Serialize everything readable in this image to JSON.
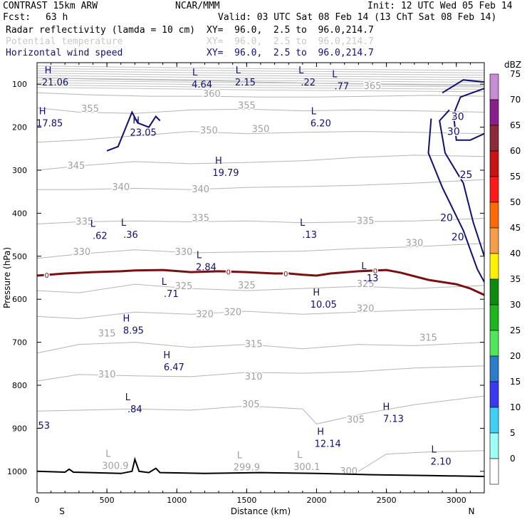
{
  "header": {
    "model": "CONTRAST 15km ARW",
    "org": "NCAR/MMM",
    "init": "Init: 12 UTC Wed 05 Feb 14",
    "fcst_label": "Fcst:",
    "fcst_value": "63 h",
    "valid": "Valid: 03 UTC Sat 08 Feb 14 (13 ChT Sat 08 Feb 14)",
    "fields": [
      {
        "name": "Radar reflectivity (lamda = 10 cm)",
        "xy": "XY=  96.0,  2.5 to  96.0,214.7",
        "color": "#000000"
      },
      {
        "name": "Potential temperature",
        "xy": "XY=  96.0,  2.5 to  96.0,214.7",
        "color": "#c8c8c8"
      },
      {
        "name": "Horizontal wind speed",
        "xy": "XY=  96.0,  2.5 to  96.0,214.7",
        "color": "#101070"
      }
    ]
  },
  "chart_data": {
    "type": "cross-section contour",
    "xlabel": "Distance (km)",
    "ylabel": "Pressure (hPa)",
    "x_ticks": [
      0,
      500,
      1000,
      1500,
      2000,
      2500,
      3000
    ],
    "xlim": [
      0,
      3200
    ],
    "y_ticks": [
      100,
      200,
      300,
      400,
      500,
      600,
      700,
      800,
      900,
      1000
    ],
    "ylim": [
      50,
      1050
    ],
    "x_end_labels": {
      "left": "S",
      "right": "N"
    },
    "colorbar": {
      "unit": "dBZ",
      "levels": [
        0,
        5,
        10,
        15,
        20,
        25,
        30,
        35,
        40,
        45,
        50,
        55,
        60,
        65,
        70,
        75
      ],
      "colors": [
        "#ffffff",
        "#9ffff5",
        "#3fd0f5",
        "#3a3af0",
        "#2d7cc8",
        "#4fe65a",
        "#1fb51f",
        "#0e8a0e",
        "#fff200",
        "#f59e4a",
        "#ff6a00",
        "#ff1a1a",
        "#c81414",
        "#8c2a3a",
        "#8a1e8a",
        "#c88cd2"
      ]
    },
    "theta_contours": [
      {
        "label": "365",
        "points": [
          [
            0,
            85
          ],
          [
            400,
            88
          ],
          [
            800,
            90
          ],
          [
            1200,
            92
          ],
          [
            1600,
            95
          ],
          [
            2000,
            98
          ],
          [
            2400,
            100
          ],
          [
            2800,
            102
          ],
          [
            3200,
            104
          ]
        ]
      },
      {
        "label": "360",
        "points": [
          [
            0,
            120
          ],
          [
            400,
            125
          ],
          [
            800,
            128
          ],
          [
            1200,
            128
          ],
          [
            1600,
            130
          ],
          [
            2000,
            130
          ],
          [
            2400,
            128
          ],
          [
            2800,
            126
          ],
          [
            3200,
            128
          ]
        ]
      },
      {
        "label": "355",
        "points": [
          [
            0,
            155
          ],
          [
            300,
            165
          ],
          [
            700,
            168
          ],
          [
            1100,
            160
          ],
          [
            1500,
            158
          ],
          [
            1900,
            162
          ],
          [
            2300,
            160
          ],
          [
            2700,
            162
          ],
          [
            3200,
            165
          ]
        ]
      },
      {
        "label": "350",
        "points": [
          [
            0,
            235
          ],
          [
            300,
            230
          ],
          [
            700,
            220
          ],
          [
            1100,
            210
          ],
          [
            1500,
            215
          ],
          [
            1900,
            212
          ],
          [
            2300,
            210
          ],
          [
            2700,
            212
          ],
          [
            3200,
            215
          ]
        ]
      },
      {
        "label": "345",
        "points": [
          [
            0,
            300
          ],
          [
            300,
            290
          ],
          [
            700,
            280
          ],
          [
            1100,
            285
          ],
          [
            1500,
            282
          ],
          [
            1900,
            278
          ],
          [
            2300,
            270
          ],
          [
            2700,
            265
          ],
          [
            3200,
            268
          ]
        ]
      },
      {
        "label": "340",
        "points": [
          [
            0,
            345
          ],
          [
            300,
            345
          ],
          [
            700,
            342
          ],
          [
            1100,
            345
          ],
          [
            1500,
            340
          ],
          [
            1900,
            338
          ],
          [
            2300,
            335
          ],
          [
            2700,
            330
          ],
          [
            3200,
            322
          ]
        ]
      },
      {
        "label": "335",
        "points": [
          [
            0,
            425
          ],
          [
            300,
            420
          ],
          [
            700,
            418
          ],
          [
            1100,
            420
          ],
          [
            1500,
            418
          ],
          [
            1900,
            422
          ],
          [
            2300,
            420
          ],
          [
            2700,
            418
          ],
          [
            3200,
            412
          ]
        ]
      },
      {
        "label": "330",
        "points": [
          [
            0,
            505
          ],
          [
            300,
            495
          ],
          [
            700,
            485
          ],
          [
            1100,
            492
          ],
          [
            1500,
            490
          ],
          [
            1900,
            488
          ],
          [
            2300,
            482
          ],
          [
            2700,
            478
          ],
          [
            3200,
            470
          ]
        ]
      },
      {
        "label": "325",
        "points": [
          [
            0,
            580
          ],
          [
            300,
            585
          ],
          [
            700,
            565
          ],
          [
            1100,
            575
          ],
          [
            1500,
            580
          ],
          [
            1900,
            575
          ],
          [
            2300,
            570
          ],
          [
            2700,
            575
          ],
          [
            3200,
            568
          ]
        ]
      },
      {
        "label": "320",
        "points": [
          [
            0,
            640
          ],
          [
            300,
            645
          ],
          [
            700,
            630
          ],
          [
            1100,
            635
          ],
          [
            1500,
            628
          ],
          [
            1900,
            635
          ],
          [
            2300,
            630
          ],
          [
            2700,
            625
          ],
          [
            3200,
            622
          ]
        ]
      },
      {
        "label": "315",
        "points": [
          [
            0,
            725
          ],
          [
            300,
            705
          ],
          [
            700,
            700
          ],
          [
            1100,
            712
          ],
          [
            1500,
            705
          ],
          [
            1900,
            715
          ],
          [
            2300,
            705
          ],
          [
            2700,
            708
          ],
          [
            3200,
            700
          ]
        ]
      },
      {
        "label": "310",
        "points": [
          [
            0,
            790
          ],
          [
            300,
            775
          ],
          [
            700,
            778
          ],
          [
            1100,
            780
          ],
          [
            1500,
            770
          ],
          [
            1900,
            772
          ],
          [
            2300,
            768
          ],
          [
            2700,
            760
          ],
          [
            3200,
            755
          ]
        ]
      },
      {
        "label": "305",
        "points": [
          [
            0,
            860
          ],
          [
            300,
            858
          ],
          [
            700,
            855
          ],
          [
            1100,
            858
          ],
          [
            1500,
            848
          ],
          [
            1900,
            855
          ],
          [
            2000,
            890
          ],
          [
            2300,
            868
          ],
          [
            2700,
            845
          ],
          [
            3200,
            825
          ]
        ]
      },
      {
        "label": "300",
        "points": [
          [
            2300,
            1000
          ],
          [
            2500,
            960
          ],
          [
            2800,
            955
          ],
          [
            3200,
            952
          ]
        ]
      }
    ],
    "theta_labels": [
      {
        "label": "365",
        "x": 2400,
        "y": 105
      },
      {
        "label": "360",
        "x": 1250,
        "y": 123
      },
      {
        "label": "355",
        "x": 380,
        "y": 158
      },
      {
        "label": "355",
        "x": 1500,
        "y": 150
      },
      {
        "label": "350",
        "x": 1230,
        "y": 208
      },
      {
        "label": "350",
        "x": 1600,
        "y": 205
      },
      {
        "label": "345",
        "x": 280,
        "y": 290
      },
      {
        "label": "340",
        "x": 600,
        "y": 340
      },
      {
        "label": "340",
        "x": 1170,
        "y": 345
      },
      {
        "label": "335",
        "x": 340,
        "y": 420
      },
      {
        "label": "335",
        "x": 1170,
        "y": 412
      },
      {
        "label": "335",
        "x": 2350,
        "y": 418
      },
      {
        "label": "330",
        "x": 320,
        "y": 490
      },
      {
        "label": "330",
        "x": 1050,
        "y": 490
      },
      {
        "label": "330",
        "x": 2700,
        "y": 470
      },
      {
        "label": "325",
        "x": 1050,
        "y": 570
      },
      {
        "label": "325",
        "x": 1500,
        "y": 568
      },
      {
        "label": "325",
        "x": 2350,
        "y": 565
      },
      {
        "label": "320",
        "x": 1400,
        "y": 630
      },
      {
        "label": "320",
        "x": 2350,
        "y": 622
      },
      {
        "label": "320",
        "x": 1200,
        "y": 635
      },
      {
        "label": "315",
        "x": 500,
        "y": 680
      },
      {
        "label": "315",
        "x": 1550,
        "y": 705
      },
      {
        "label": "315",
        "x": 2800,
        "y": 690
      },
      {
        "label": "310",
        "x": 500,
        "y": 775
      },
      {
        "label": "310",
        "x": 1550,
        "y": 780
      },
      {
        "label": "305",
        "x": 1530,
        "y": 845
      },
      {
        "label": "305",
        "x": 2280,
        "y": 880
      },
      {
        "label": "300",
        "x": 2230,
        "y": 1000
      }
    ],
    "wind_contours": [
      {
        "label": "30",
        "points": [
          [
            2900,
            120
          ],
          [
            3050,
            90
          ],
          [
            3200,
            95
          ]
        ]
      },
      {
        "label": "30",
        "points": [
          [
            3200,
            110
          ],
          [
            3030,
            130
          ],
          [
            2980,
            170
          ],
          [
            3000,
            230
          ],
          [
            3100,
            230
          ],
          [
            3200,
            215
          ]
        ]
      },
      {
        "label": "25",
        "points": [
          [
            2950,
            160
          ],
          [
            2880,
            185
          ],
          [
            2920,
            260
          ],
          [
            3050,
            330
          ],
          [
            3120,
            420
          ],
          [
            3200,
            500
          ]
        ]
      },
      {
        "label": "20",
        "points": [
          [
            2820,
            180
          ],
          [
            2800,
            260
          ],
          [
            2900,
            340
          ],
          [
            3050,
            440
          ],
          [
            3150,
            530
          ],
          [
            3200,
            560
          ]
        ]
      },
      {
        "label": "20",
        "points": [
          [
            500,
            255
          ],
          [
            580,
            245
          ],
          [
            680,
            165
          ],
          [
            720,
            190
          ],
          [
            800,
            200
          ],
          [
            850,
            175
          ],
          [
            880,
            185
          ]
        ]
      }
    ],
    "wind_labels": [
      {
        "label": "30",
        "x": 3010,
        "y": 175
      },
      {
        "label": "30",
        "x": 2980,
        "y": 210
      },
      {
        "label": "25",
        "x": 3070,
        "y": 310
      },
      {
        "label": "20",
        "x": 2930,
        "y": 410
      },
      {
        "label": "20",
        "x": 3010,
        "y": 455
      }
    ],
    "extrema": [
      {
        "kind": "H",
        "value": "21.06",
        "x": 130,
        "y": 88
      },
      {
        "kind": "L",
        "value": "4.64",
        "x": 1180,
        "y": 93
      },
      {
        "kind": "L",
        "value": "2.15",
        "x": 1490,
        "y": 88
      },
      {
        "kind": "L",
        "value": ".22",
        "x": 1940,
        "y": 88
      },
      {
        "kind": "L",
        "value": ".77",
        "x": 2180,
        "y": 97
      },
      {
        "kind": "H",
        "value": "17.85",
        "x": 90,
        "y": 183
      },
      {
        "kind": "H",
        "value": "23.05",
        "x": 760,
        "y": 205
      },
      {
        "kind": "L",
        "value": "6.20",
        "x": 2030,
        "y": 183
      },
      {
        "kind": "H",
        "value": "19.79",
        "x": 1350,
        "y": 298
      },
      {
        "kind": "L",
        "value": ".62",
        "x": 450,
        "y": 445
      },
      {
        "kind": "L",
        "value": ".36",
        "x": 670,
        "y": 442
      },
      {
        "kind": "L",
        "value": ".13",
        "x": 1950,
        "y": 442
      },
      {
        "kind": "L",
        "value": "2.84",
        "x": 1210,
        "y": 518
      },
      {
        "kind": "L",
        "value": ".13",
        "x": 2390,
        "y": 543
      },
      {
        "kind": "L",
        "value": ".71",
        "x": 960,
        "y": 580
      },
      {
        "kind": "H",
        "value": "10.05",
        "x": 2050,
        "y": 605
      },
      {
        "kind": "H",
        "value": "8.95",
        "x": 690,
        "y": 665
      },
      {
        "kind": "H",
        "value": "6.47",
        "x": 980,
        "y": 750
      },
      {
        "kind": "L",
        "value": ".84",
        "x": 700,
        "y": 848
      },
      {
        "kind": "H",
        "value": "7.13",
        "x": 2550,
        "y": 870
      },
      {
        "kind": "H",
        "value": "12.14",
        "x": 2080,
        "y": 928
      },
      {
        "kind": "L",
        "value": "300.9",
        "x": 560,
        "y": 980
      },
      {
        "kind": "L",
        "value": "299.9",
        "x": 1500,
        "y": 983
      },
      {
        "kind": "L",
        "value": "300.1",
        "x": 1930,
        "y": 982
      },
      {
        "kind": "L",
        "value": "2.10",
        "x": 2890,
        "y": 970
      }
    ],
    "left_edge_value": {
      "value": "53",
      "x": 50,
      "y": 893
    },
    "reflectivity_contour": {
      "label": "0",
      "points": [
        [
          0,
          545
        ],
        [
          200,
          540
        ],
        [
          400,
          537
        ],
        [
          600,
          535
        ],
        [
          700,
          533
        ],
        [
          900,
          532
        ],
        [
          1100,
          537
        ],
        [
          1300,
          535
        ],
        [
          1500,
          537
        ],
        [
          1700,
          540
        ],
        [
          1800,
          540
        ],
        [
          1900,
          543
        ],
        [
          2000,
          545
        ],
        [
          2100,
          540
        ],
        [
          2300,
          535
        ],
        [
          2500,
          532
        ],
        [
          2600,
          538
        ],
        [
          2800,
          555
        ],
        [
          3000,
          565
        ],
        [
          3100,
          575
        ],
        [
          3200,
          590
        ]
      ],
      "label_x": [
        70,
        1370,
        1780,
        2420
      ],
      "color": "#7a1010"
    },
    "surface": {
      "points": [
        [
          0,
          1000
        ],
        [
          200,
          1002
        ],
        [
          230,
          995
        ],
        [
          260,
          1002
        ],
        [
          600,
          1005
        ],
        [
          680,
          1000
        ],
        [
          700,
          972
        ],
        [
          730,
          1000
        ],
        [
          800,
          1003
        ],
        [
          850,
          993
        ],
        [
          880,
          1003
        ],
        [
          1200,
          1005
        ],
        [
          1600,
          1003
        ],
        [
          2000,
          1005
        ],
        [
          2400,
          1008
        ],
        [
          2800,
          1010
        ],
        [
          3200,
          1012
        ]
      ],
      "color": "#000000"
    }
  }
}
